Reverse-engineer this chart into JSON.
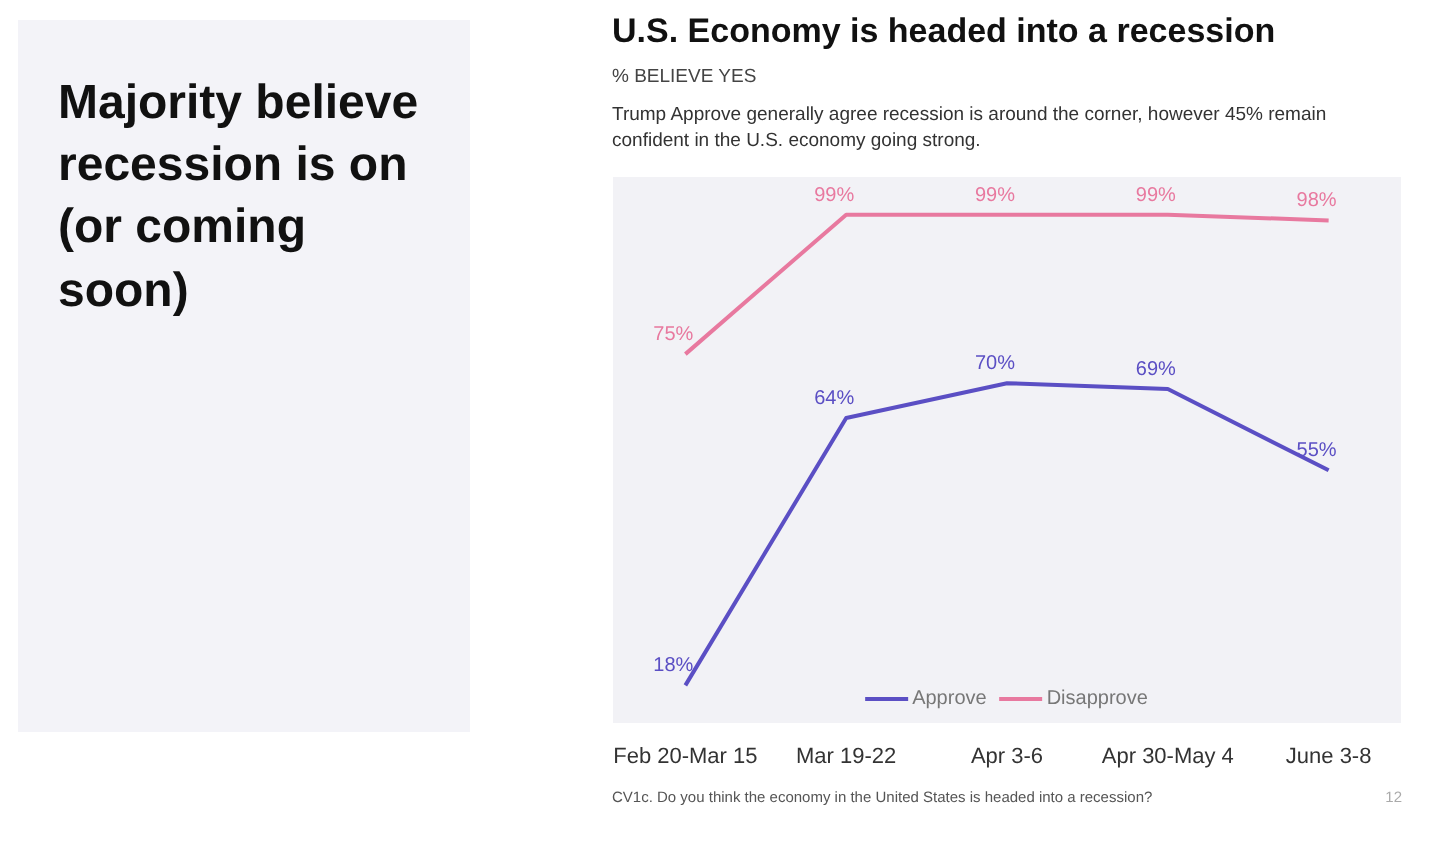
{
  "chart_data": [
    {
      "type": "other",
      "title": "Majority believe recession is on (or coming soon)"
    },
    {
      "type": "line",
      "title": "U.S. Economy is headed into a recession",
      "subtitle": "% BELIEVE YES",
      "annotations": [
        "Trump Approve generally agree recession is around the corner, however 45% remain confident in the U.S. economy going strong.",
        "CV1c. Do you think the economy in the United States is headed into a recession?",
        "12"
      ],
      "categories": [
        "Feb 20-Mar 15",
        "Mar 19-22",
        "Apr 3-6",
        "Apr 30-May 4",
        "June 3-8"
      ],
      "series": [
        {
          "name": "Approve",
          "color": "#5b4fc4",
          "values": [
            18,
            64,
            70,
            69,
            55
          ],
          "value_labels": [
            "18%",
            "64%",
            "70%",
            "69%",
            "55%"
          ]
        },
        {
          "name": "Disapprove",
          "color": "#e8799f",
          "values": [
            75,
            99,
            99,
            99,
            98
          ],
          "value_labels": [
            "75%",
            "99%",
            "99%",
            "99%",
            "98%"
          ]
        }
      ],
      "legend": "bottom",
      "line_style": "solid"
    }
  ]
}
